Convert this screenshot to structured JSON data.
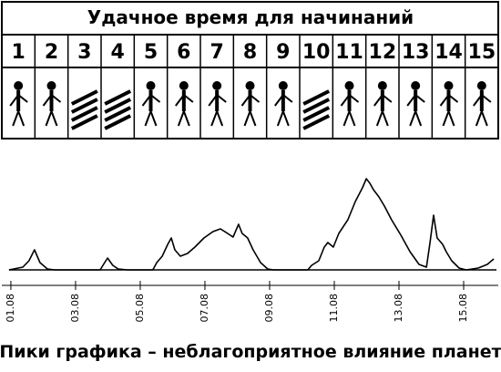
{
  "table": {
    "title": "Удачное время для начинаний",
    "columns": [
      1,
      2,
      3,
      4,
      5,
      6,
      7,
      8,
      9,
      10,
      11,
      12,
      13,
      14,
      15
    ]
  },
  "chart_data": {
    "type": "line",
    "caption": "Пики графика – неблагоприятное влияние планет",
    "color": "#000000",
    "x": [
      0.94,
      1.37,
      1.56,
      1.73,
      1.9,
      2.13,
      2.35,
      3.76,
      3.9,
      3.99,
      4.15,
      4.32,
      4.61,
      5.39,
      5.51,
      5.68,
      5.85,
      5.96,
      6.07,
      6.24,
      6.46,
      6.69,
      6.97,
      7.25,
      7.48,
      7.7,
      7.87,
      8.04,
      8.15,
      8.32,
      8.49,
      8.72,
      8.94,
      9.11,
      10.18,
      10.3,
      10.52,
      10.69,
      10.8,
      10.97,
      11.14,
      11.42,
      11.65,
      11.87,
      11.99,
      12.1,
      12.21,
      12.38,
      12.55,
      12.77,
      13.06,
      13.34,
      13.62,
      13.85,
      13.96,
      14.07,
      14.18,
      14.35,
      14.46,
      14.63,
      14.86,
      15.08,
      15.45,
      15.73,
      15.93
    ],
    "values": [
      0,
      3,
      10,
      22,
      8,
      1,
      0,
      0,
      8,
      13,
      5,
      1,
      0,
      0,
      8,
      15,
      28,
      35,
      22,
      15,
      18,
      25,
      35,
      42,
      45,
      40,
      36,
      50,
      40,
      35,
      22,
      8,
      1,
      0,
      0,
      5,
      10,
      25,
      30,
      25,
      40,
      55,
      75,
      90,
      100,
      95,
      88,
      80,
      70,
      55,
      38,
      20,
      6,
      3,
      30,
      60,
      35,
      28,
      20,
      10,
      2,
      0,
      2,
      6,
      12
    ],
    "xlim": [
      0.72,
      16.07
    ],
    "ylim": [
      0,
      100
    ],
    "xticks": [
      {
        "value": 1,
        "label": "01.08"
      },
      {
        "value": 3,
        "label": "03.08"
      },
      {
        "value": 5,
        "label": "05.08"
      },
      {
        "value": 7,
        "label": "07.08"
      },
      {
        "value": 9,
        "label": "09.08"
      },
      {
        "value": 11,
        "label": "11.08"
      },
      {
        "value": 13,
        "label": "13.08"
      },
      {
        "value": 15,
        "label": "15.08"
      }
    ]
  }
}
